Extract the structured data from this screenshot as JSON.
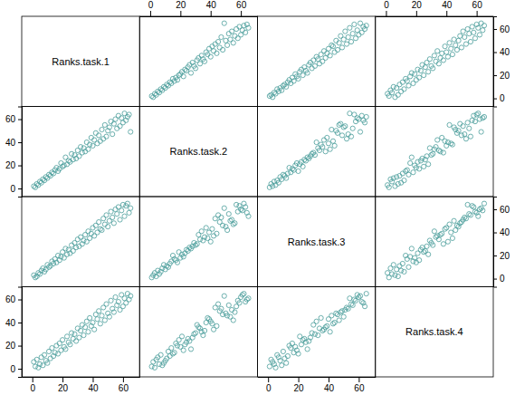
{
  "chart_data": {
    "type": "scatter_matrix",
    "variables": [
      {
        "name": "Ranks.task.1",
        "values": [
          1,
          2,
          3,
          4,
          5,
          6,
          7,
          8,
          9,
          10,
          11,
          12,
          13,
          14,
          15,
          16,
          17,
          18,
          19,
          20,
          21,
          22,
          23,
          24,
          25,
          26,
          27,
          28,
          29,
          30,
          31,
          32,
          33,
          34,
          35,
          36,
          37,
          38,
          39,
          40,
          41,
          42,
          43,
          44,
          45,
          46,
          47,
          48,
          49,
          50,
          51,
          52,
          53,
          54,
          55,
          56,
          57,
          58,
          59,
          60,
          61,
          62,
          63,
          64,
          65
        ]
      },
      {
        "name": "Ranks.task.2",
        "values": [
          2,
          1,
          4,
          3,
          6,
          5,
          8,
          7,
          10,
          9,
          12,
          11,
          14,
          13,
          16,
          18,
          15,
          17,
          22,
          19,
          20,
          27,
          21,
          24,
          23,
          30,
          25,
          29,
          26,
          33,
          28,
          36,
          31,
          35,
          32,
          40,
          34,
          38,
          44,
          37,
          42,
          48,
          39,
          46,
          41,
          51,
          43,
          55,
          45,
          50,
          53,
          58,
          47,
          56,
          60,
          52,
          63,
          54,
          61,
          57,
          65,
          59,
          62,
          64,
          49
        ]
      },
      {
        "name": "Ranks.task.3",
        "values": [
          3,
          1,
          2,
          5,
          4,
          7,
          9,
          6,
          8,
          12,
          10,
          11,
          15,
          13,
          17,
          14,
          20,
          16,
          19,
          23,
          18,
          26,
          21,
          25,
          22,
          29,
          24,
          31,
          27,
          34,
          28,
          36,
          30,
          33,
          38,
          32,
          41,
          35,
          39,
          44,
          37,
          46,
          40,
          49,
          43,
          42,
          52,
          47,
          55,
          45,
          50,
          58,
          53,
          48,
          60,
          56,
          62,
          51,
          59,
          64,
          54,
          63,
          65,
          57,
          61
        ]
      },
      {
        "name": "Ranks.task.4",
        "values": [
          6,
          2,
          8,
          1,
          4,
          10,
          3,
          12,
          7,
          5,
          15,
          9,
          18,
          11,
          14,
          20,
          13,
          22,
          16,
          25,
          19,
          17,
          28,
          23,
          21,
          31,
          26,
          30,
          24,
          35,
          27,
          33,
          38,
          29,
          36,
          41,
          32,
          44,
          37,
          40,
          34,
          47,
          43,
          50,
          39,
          46,
          53,
          42,
          56,
          48,
          45,
          59,
          52,
          49,
          62,
          55,
          58,
          51,
          64,
          54,
          61,
          57,
          65,
          60,
          63
        ]
      }
    ],
    "xlim": [
      -7,
      71
    ],
    "ylim": [
      -7,
      71
    ],
    "xticks": [
      0,
      20,
      40,
      60
    ],
    "yticks": [
      0,
      20,
      40,
      60
    ],
    "color": "#4a9d9a",
    "marker": "circle"
  }
}
